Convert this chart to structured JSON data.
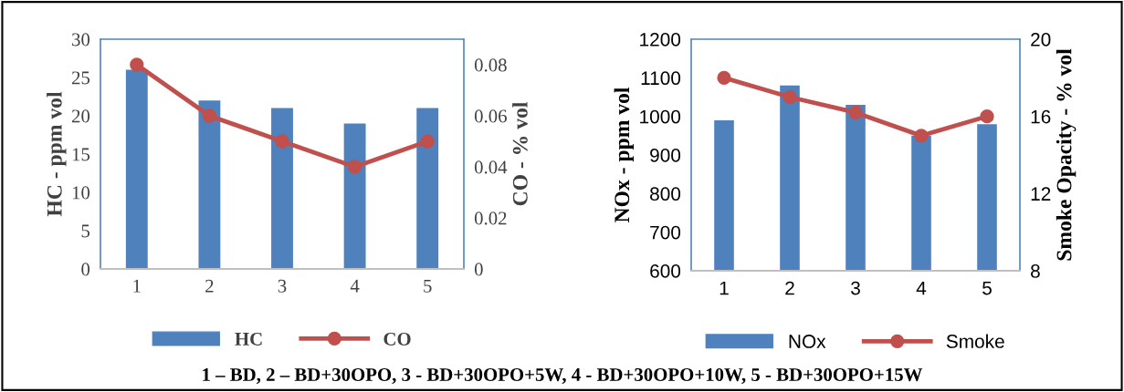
{
  "chart_data": [
    {
      "type": "bar",
      "categories": [
        "1",
        "2",
        "3",
        "4",
        "5"
      ],
      "ylabel": "HC - ppm vol",
      "y2label": "CO - % vol",
      "ylim": [
        0,
        30
      ],
      "yticks": [
        0,
        5,
        10,
        15,
        20,
        25,
        30
      ],
      "y2lim": [
        0,
        0.09
      ],
      "y2ticks": [
        {
          "value": 0,
          "label": "0"
        },
        {
          "value": 0.02,
          "label": "0.02"
        },
        {
          "value": 0.04,
          "label": "0.04"
        },
        {
          "value": 0.06,
          "label": "0.06"
        },
        {
          "value": 0.08,
          "label": "0.08"
        }
      ],
      "legend": "bottom",
      "grid": false,
      "marker": "circle",
      "line_style": "solid",
      "series": [
        {
          "name": "HC",
          "color": "#4f81bd",
          "values": [
            26,
            22,
            21,
            19,
            21
          ]
        },
        {
          "name": "CO",
          "type": "line",
          "axis": "y2",
          "color": "#c0504d",
          "values": [
            0.08,
            0.06,
            0.05,
            0.04,
            0.05
          ]
        }
      ],
      "annotations": [
        "1 – BD, 2 – BD+30OPO, 3 - BD+30OPO+5W, 4 - BD+30OPO+10W, 5 - BD+30OPO+15W"
      ]
    },
    {
      "type": "bar",
      "categories": [
        "1",
        "2",
        "3",
        "4",
        "5"
      ],
      "ylabel": "NOx - ppm vol",
      "y2label": "Smoke Opacity - % vol",
      "ylim": [
        600,
        1200
      ],
      "yticks": [
        600,
        700,
        800,
        900,
        1000,
        1100,
        1200
      ],
      "y2lim": [
        8,
        20
      ],
      "y2ticks": [
        8,
        12,
        16,
        20
      ],
      "legend": "bottom",
      "grid": false,
      "marker": "circle",
      "line_style": "solid",
      "series": [
        {
          "name": "NOx",
          "color": "#4f81bd",
          "values": [
            990,
            1080,
            1030,
            950,
            980
          ]
        },
        {
          "name": "Smoke",
          "type": "line",
          "axis": "y2",
          "color": "#c0504d",
          "values": [
            18,
            17,
            16.2,
            15,
            16
          ]
        }
      ]
    }
  ]
}
